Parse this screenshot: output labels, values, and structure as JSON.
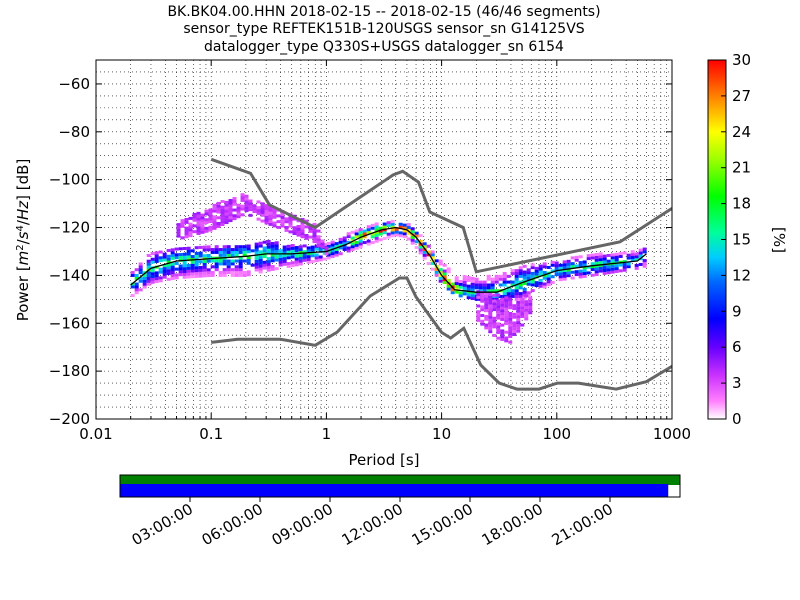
{
  "title_lines": [
    "BK.BK04.00.HHN   2018-02-15 -- 2018-02-15  (46/46 segments)",
    "sensor_type REFTEK151B-120USGS sensor_sn G14125VS",
    "datalogger_type Q330S+USGS datalogger_sn 6154"
  ],
  "chart_data": {
    "type": "heatmap",
    "title": "BK.BK04.00.HHN   2018-02-15 -- 2018-02-15  (46/46 segments)",
    "subtitle": "sensor_type REFTEK151B-120USGS sensor_sn G14125VS / datalogger_type Q330S+USGS datalogger_sn 6154",
    "xlabel": "Period [s]",
    "ylabel": "Power [m²/s⁴/Hz] [dB]",
    "xscale": "log",
    "xlim": [
      0.01,
      1000
    ],
    "ylim": [
      -200,
      -50
    ],
    "x_ticks": [
      {
        "value": 0.01,
        "label": "0.01"
      },
      {
        "value": 0.1,
        "label": "0.1"
      },
      {
        "value": 1,
        "label": "1"
      },
      {
        "value": 10,
        "label": "10"
      },
      {
        "value": 100,
        "label": "100"
      },
      {
        "value": 1000,
        "label": "1000"
      }
    ],
    "y_ticks": [
      -60,
      -80,
      -100,
      -120,
      -140,
      -160,
      -180,
      -200
    ],
    "grid": true,
    "colorbar": {
      "label": "[%]",
      "range": [
        0,
        30
      ],
      "ticks": [
        0,
        3,
        6,
        9,
        12,
        15,
        18,
        21,
        24,
        27,
        30
      ]
    },
    "noise_models": [
      {
        "name": "NHNM",
        "points": [
          [
            0.1,
            -91.5
          ],
          [
            0.22,
            -97.4
          ],
          [
            0.32,
            -110.5
          ],
          [
            0.8,
            -120
          ],
          [
            3.8,
            -98
          ],
          [
            4.6,
            -96.5
          ],
          [
            6.3,
            -101
          ],
          [
            7.9,
            -113.5
          ],
          [
            15.4,
            -120
          ],
          [
            20,
            -138.5
          ],
          [
            354,
            -126
          ],
          [
            1000,
            -112
          ]
        ]
      },
      {
        "name": "NLNM",
        "points": [
          [
            0.1,
            -168
          ],
          [
            0.17,
            -166.7
          ],
          [
            0.4,
            -166.7
          ],
          [
            0.8,
            -169.2
          ],
          [
            1.24,
            -163.7
          ],
          [
            2.4,
            -148.6
          ],
          [
            4.3,
            -141.1
          ],
          [
            5,
            -141.1
          ],
          [
            6,
            -149
          ],
          [
            10,
            -163.8
          ],
          [
            12,
            -166.2
          ],
          [
            15.6,
            -162.1
          ],
          [
            21.9,
            -177.5
          ],
          [
            31.6,
            -185
          ],
          [
            45,
            -187.5
          ],
          [
            70,
            -187.5
          ],
          [
            101,
            -185
          ],
          [
            154,
            -185
          ],
          [
            328,
            -187.5
          ],
          [
            600,
            -184.4
          ],
          [
            1000,
            -178
          ]
        ]
      }
    ],
    "psd_median": [
      [
        0.02,
        -144
      ],
      [
        0.03,
        -137
      ],
      [
        0.05,
        -134
      ],
      [
        0.1,
        -133
      ],
      [
        0.2,
        -132
      ],
      [
        0.3,
        -131
      ],
      [
        0.5,
        -131
      ],
      [
        1,
        -130
      ],
      [
        1.5,
        -127
      ],
      [
        2,
        -124
      ],
      [
        3,
        -121
      ],
      [
        4,
        -120
      ],
      [
        5,
        -121
      ],
      [
        6,
        -124
      ],
      [
        8,
        -132
      ],
      [
        10,
        -140
      ],
      [
        13,
        -146
      ],
      [
        20,
        -147
      ],
      [
        30,
        -147
      ],
      [
        50,
        -143
      ],
      [
        100,
        -138
      ],
      [
        200,
        -136
      ],
      [
        500,
        -134
      ],
      [
        600,
        -131
      ]
    ],
    "density_bands": [
      {
        "name": "main",
        "upper": [
          [
            0.02,
            -139
          ],
          [
            0.03,
            -130
          ],
          [
            0.05,
            -128
          ],
          [
            0.1,
            -128
          ],
          [
            0.2,
            -127
          ],
          [
            0.3,
            -125
          ],
          [
            0.5,
            -127
          ],
          [
            1,
            -127
          ],
          [
            2,
            -120
          ],
          [
            3,
            -118
          ],
          [
            4,
            -117
          ],
          [
            5,
            -118
          ],
          [
            6,
            -121
          ],
          [
            8,
            -128
          ],
          [
            10,
            -134
          ],
          [
            13,
            -140
          ],
          [
            20,
            -141
          ],
          [
            30,
            -140
          ],
          [
            50,
            -136
          ],
          [
            100,
            -134
          ],
          [
            200,
            -131
          ],
          [
            500,
            -130
          ],
          [
            600,
            -128
          ]
        ],
        "lower": [
          [
            0.02,
            -149
          ],
          [
            0.03,
            -143
          ],
          [
            0.05,
            -141
          ],
          [
            0.1,
            -140
          ],
          [
            0.2,
            -140
          ],
          [
            0.3,
            -138
          ],
          [
            0.5,
            -136
          ],
          [
            1,
            -133
          ],
          [
            2,
            -128
          ],
          [
            3,
            -125
          ],
          [
            4,
            -123
          ],
          [
            5,
            -124
          ],
          [
            6,
            -128
          ],
          [
            8,
            -136
          ],
          [
            10,
            -143
          ],
          [
            13,
            -148
          ],
          [
            20,
            -150
          ],
          [
            30,
            -150
          ],
          [
            50,
            -150
          ],
          [
            100,
            -142
          ],
          [
            200,
            -140
          ],
          [
            500,
            -137
          ],
          [
            600,
            -136
          ]
        ]
      },
      {
        "name": "upper-outliers",
        "upper": [
          [
            0.05,
            -118
          ],
          [
            0.1,
            -111
          ],
          [
            0.2,
            -105
          ],
          [
            0.3,
            -110
          ],
          [
            0.5,
            -114
          ],
          [
            0.8,
            -118
          ],
          [
            1,
            -128
          ]
        ],
        "lower": [
          [
            0.05,
            -125
          ],
          [
            0.1,
            -121
          ],
          [
            0.2,
            -114
          ],
          [
            0.3,
            -118
          ],
          [
            0.5,
            -122
          ],
          [
            0.8,
            -126
          ],
          [
            1,
            -131
          ]
        ]
      },
      {
        "name": "lower-outliers",
        "upper": [
          [
            20,
            -146
          ],
          [
            30,
            -148
          ],
          [
            40,
            -150
          ],
          [
            60,
            -148
          ]
        ],
        "lower": [
          [
            20,
            -158
          ],
          [
            30,
            -166
          ],
          [
            40,
            -168
          ],
          [
            60,
            -155
          ]
        ]
      }
    ]
  },
  "timeline": {
    "tick_labels": [
      "03:00:00",
      "06:00:00",
      "09:00:00",
      "12:00:00",
      "15:00:00",
      "18:00:00",
      "21:00:00"
    ],
    "tick_fractions": [
      0.125,
      0.25,
      0.375,
      0.5,
      0.625,
      0.75,
      0.875
    ],
    "coverage_fraction": 0.979,
    "coverage_color": "#0000ff",
    "data_color": "#008000"
  },
  "colors": {
    "noise_model": "#666666",
    "median": "#000000",
    "grid": "#000000"
  }
}
